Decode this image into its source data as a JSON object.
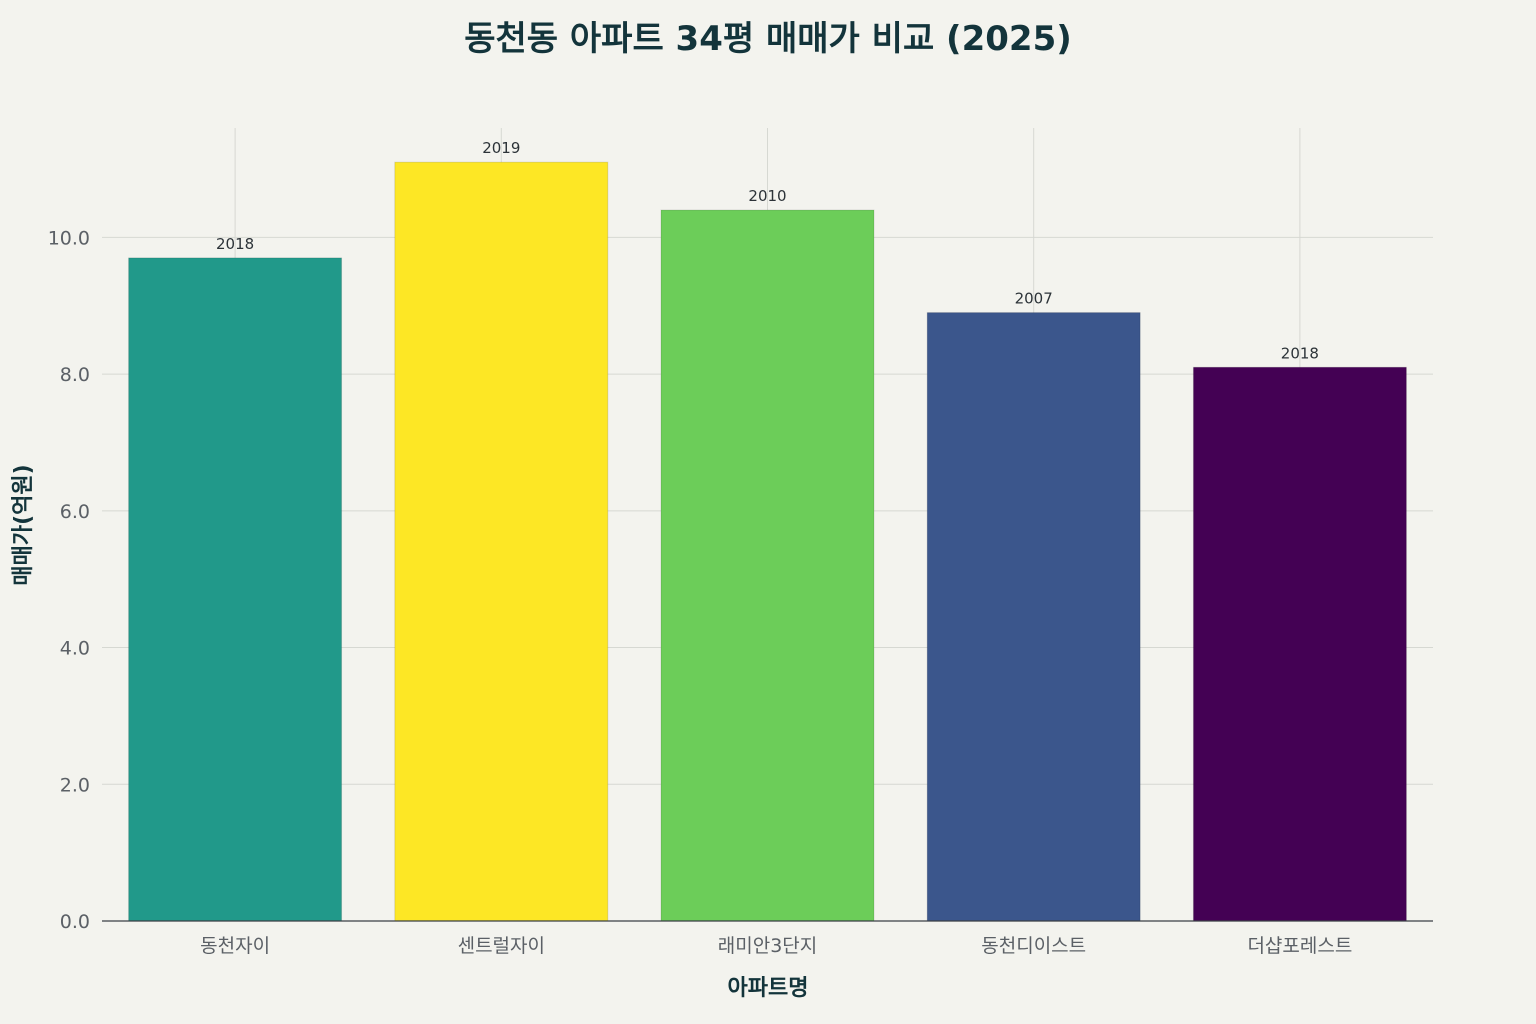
{
  "chart_data": {
    "type": "bar",
    "title": "동천동 아파트 34평 매매가 비교 (2025)",
    "xlabel": "아파트명",
    "ylabel": "매매가(억원)",
    "categories": [
      "동천자이",
      "센트럴자이",
      "래미안3단지",
      "동천디이스트",
      "더샵포레스트"
    ],
    "values": [
      9.7,
      11.1,
      10.4,
      8.9,
      8.1
    ],
    "bar_labels": [
      "2018",
      "2019",
      "2010",
      "2007",
      "2018"
    ],
    "colors": [
      "#21998a",
      "#fde725",
      "#6ccd59",
      "#3b568c",
      "#440154"
    ],
    "ylim": [
      0,
      11.6
    ],
    "yticks": [
      0,
      2,
      4,
      6,
      8,
      10
    ],
    "ytick_labels": [
      "0.0",
      "2.0",
      "4.0",
      "6.0",
      "8.0",
      "10.0"
    ],
    "grid": true,
    "legend": "none"
  }
}
